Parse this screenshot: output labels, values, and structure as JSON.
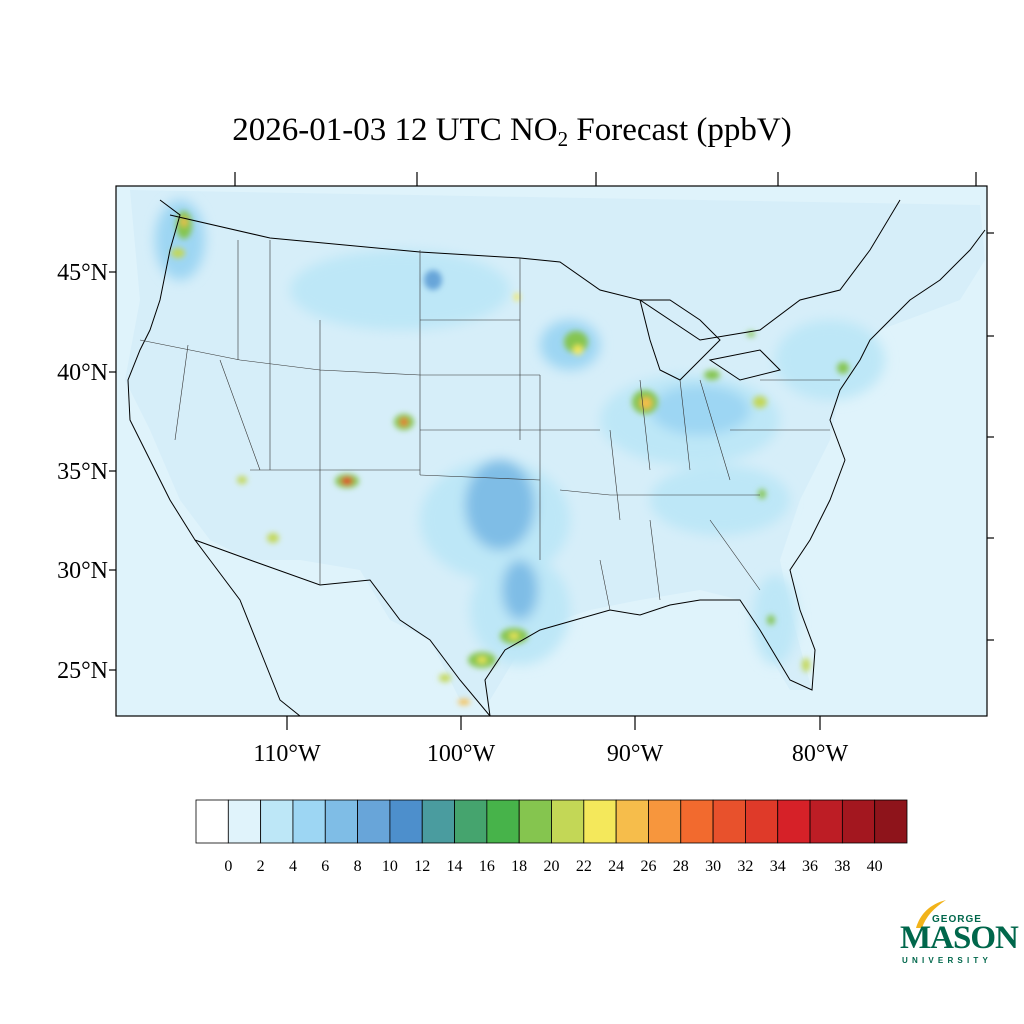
{
  "title": {
    "main": "2026-01-03 12 UTC NO",
    "subscript": "2",
    "rest": " Forecast (ppbV)"
  },
  "map": {
    "ocean_color": "#dff3fb",
    "latitude_labels": [
      "45°N",
      "40°N",
      "35°N",
      "30°N",
      "25°N"
    ],
    "longitude_labels": [
      "110°W",
      "100°W",
      "90°W",
      "80°W"
    ]
  },
  "colorbar": {
    "labels": [
      "0",
      "2",
      "4",
      "6",
      "8",
      "10",
      "12",
      "14",
      "16",
      "18",
      "20",
      "22",
      "24",
      "26",
      "28",
      "30",
      "32",
      "34",
      "36",
      "38",
      "40"
    ],
    "colors": [
      "#ffffff",
      "#e0f3fb",
      "#bde7f7",
      "#9dd6f3",
      "#7fbde6",
      "#68a5d9",
      "#4d8fcc",
      "#4a9c9f",
      "#45a46e",
      "#47b34a",
      "#85c54f",
      "#c3d756",
      "#f4e85b",
      "#f6bd4b",
      "#f7963d",
      "#f26a2e",
      "#e8512c",
      "#df3a29",
      "#d62128",
      "#bd1d25",
      "#a3171f",
      "#8e141b"
    ]
  },
  "logo": {
    "top": "GEORGE",
    "middle": "MASON",
    "bottom": "UNIVERSITY",
    "color": "#00674b",
    "accent": "#f2b31a"
  }
}
